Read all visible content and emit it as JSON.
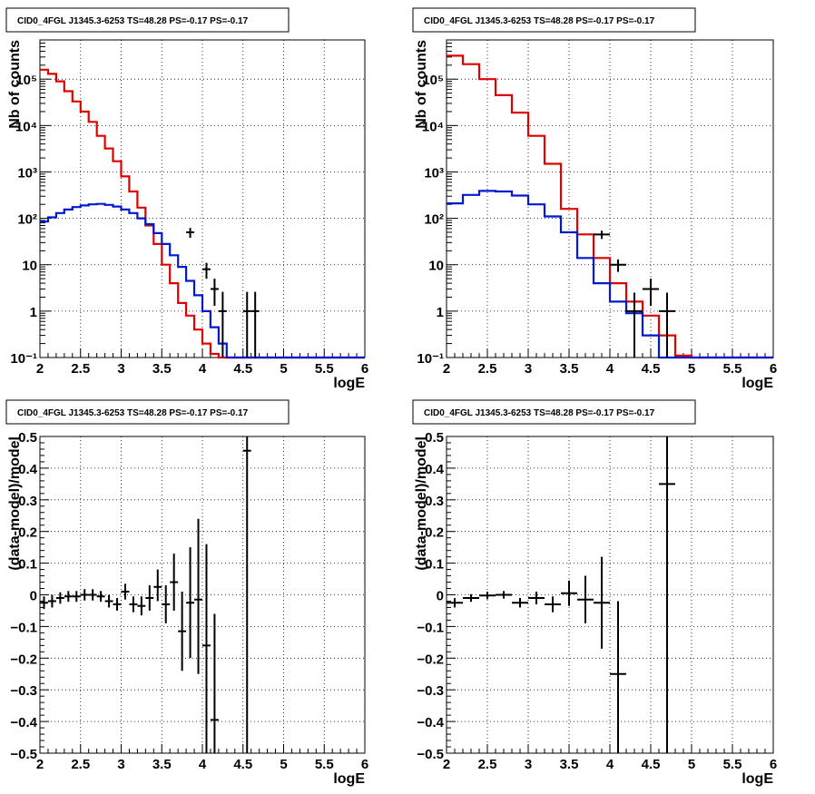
{
  "chart_data": [
    {
      "type": "line",
      "title": "CID0_4FGL J1345.3-6253 TS=48.28 PS=-0.17 PS=-0.17",
      "xlabel": "logE",
      "ylabel": "Nb of counts",
      "xlim": [
        2,
        6
      ],
      "ylim": [
        0.1,
        700000
      ],
      "yscale": "log",
      "grid": true,
      "xticks": [
        "2",
        "2.5",
        "3",
        "3.5",
        "4",
        "4.5",
        "5",
        "5.5",
        "6"
      ],
      "yticks": [
        {
          "value": 0.1,
          "label": "10⁻¹"
        },
        {
          "value": 1,
          "label": "1"
        },
        {
          "value": 10,
          "label": "10"
        },
        {
          "value": 100,
          "label": "10²"
        },
        {
          "value": 1000,
          "label": "10³"
        },
        {
          "value": 10000,
          "label": "10⁴"
        },
        {
          "value": 100000,
          "label": "10⁵"
        }
      ],
      "bin_edges": [
        2.0,
        2.1,
        2.2,
        2.3,
        2.4,
        2.5,
        2.6,
        2.7,
        2.8,
        2.9,
        3.0,
        3.1,
        3.2,
        3.3,
        3.4,
        3.5,
        3.6,
        3.7,
        3.8,
        3.9,
        4.0,
        4.1,
        4.2,
        4.3,
        4.4,
        4.5,
        4.6,
        4.7,
        4.8,
        4.9,
        5.0,
        5.1,
        5.2,
        5.3,
        5.4,
        5.5,
        5.6,
        5.7,
        5.8,
        5.9,
        6.0
      ],
      "series": [
        {
          "kind": "step",
          "color": "#e00000",
          "values": [
            160000,
            130000,
            90000,
            55000,
            33000,
            20000,
            12000,
            6000,
            3200,
            1700,
            800,
            380,
            170,
            70,
            28,
            10,
            4,
            1.5,
            0.8,
            0.4,
            0.2,
            0.12,
            0.1,
            0.1,
            0.1,
            0.1,
            0.1,
            0.1,
            0.1,
            0.1,
            0.1,
            0.1,
            0.1,
            0.1,
            0.1,
            0.1,
            0.1,
            0.1,
            0.1,
            0.1
          ]
        },
        {
          "kind": "step",
          "color": "#0018d0",
          "values": [
            85,
            105,
            130,
            155,
            175,
            190,
            200,
            205,
            195,
            180,
            155,
            130,
            100,
            75,
            48,
            28,
            16,
            9,
            4.5,
            2.2,
            1,
            0.45,
            0.2,
            0.1,
            0.1,
            0.1,
            0.1,
            0.1,
            0.1,
            0.1,
            0.1,
            0.1,
            0.1,
            0.1,
            0.1,
            0.1,
            0.1,
            0.1,
            0.1,
            0.1
          ]
        },
        {
          "kind": "errorbars",
          "color": "#000000",
          "points": [
            {
              "x": 3.85,
              "y": 50,
              "xerr": 0.05,
              "ylo": 38,
              "yhi": 62
            },
            {
              "x": 4.05,
              "y": 8,
              "xerr": 0.05,
              "ylo": 5,
              "yhi": 11
            },
            {
              "x": 4.15,
              "y": 3,
              "xerr": 0.05,
              "ylo": 1.3,
              "yhi": 5
            },
            {
              "x": 4.25,
              "y": 1,
              "xerr": 0.05,
              "ylo": 0.1,
              "yhi": 2.6
            },
            {
              "x": 4.55,
              "y": 1,
              "xerr": 0.05,
              "ylo": 0.1,
              "yhi": 2.6
            },
            {
              "x": 4.65,
              "y": 1,
              "xerr": 0.05,
              "ylo": 0.1,
              "yhi": 2.6
            }
          ]
        }
      ]
    },
    {
      "type": "line",
      "title": "CID0_4FGL J1345.3-6253 TS=48.28 PS=-0.17 PS=-0.17",
      "xlabel": "logE",
      "ylabel": "Nb of counts",
      "xlim": [
        2,
        6
      ],
      "ylim": [
        0.1,
        700000
      ],
      "yscale": "log",
      "grid": true,
      "xticks": [
        "2",
        "2.5",
        "3",
        "3.5",
        "4",
        "4.5",
        "5",
        "5.5",
        "6"
      ],
      "yticks": [
        {
          "value": 0.1,
          "label": "10⁻¹"
        },
        {
          "value": 1,
          "label": "1"
        },
        {
          "value": 10,
          "label": "10"
        },
        {
          "value": 100,
          "label": "10²"
        },
        {
          "value": 1000,
          "label": "10³"
        },
        {
          "value": 10000,
          "label": "10⁴"
        },
        {
          "value": 100000,
          "label": "10⁵"
        }
      ],
      "bin_edges": [
        2.0,
        2.2,
        2.4,
        2.6,
        2.8,
        3.0,
        3.2,
        3.4,
        3.6,
        3.8,
        4.0,
        4.2,
        4.4,
        4.6,
        4.8,
        5.0,
        5.2,
        5.4,
        5.6,
        5.8,
        6.0
      ],
      "series": [
        {
          "kind": "step",
          "color": "#e00000",
          "values": [
            320000,
            210000,
            100000,
            45000,
            19000,
            6000,
            1500,
            160,
            45,
            14,
            4,
            1.6,
            0.8,
            0.3,
            0.11,
            0.1,
            0.1,
            0.1,
            0.1,
            0.1
          ]
        },
        {
          "kind": "step",
          "color": "#0018d0",
          "values": [
            210,
            320,
            390,
            380,
            310,
            200,
            110,
            50,
            14,
            4,
            1.6,
            0.9,
            0.3,
            0.1,
            0.1,
            0.1,
            0.1,
            0.1,
            0.1,
            0.1
          ]
        },
        {
          "kind": "errorbars",
          "color": "#000000",
          "points": [
            {
              "x": 3.9,
              "y": 45,
              "xerr": 0.1,
              "ylo": 36,
              "yhi": 54
            },
            {
              "x": 4.1,
              "y": 10,
              "xerr": 0.1,
              "ylo": 7,
              "yhi": 13
            },
            {
              "x": 4.3,
              "y": 1,
              "xerr": 0.1,
              "ylo": 0.1,
              "yhi": 2.5
            },
            {
              "x": 4.5,
              "y": 3,
              "xerr": 0.1,
              "ylo": 1.3,
              "yhi": 5
            },
            {
              "x": 4.7,
              "y": 1,
              "xerr": 0.1,
              "ylo": 0.1,
              "yhi": 2.5
            }
          ]
        }
      ]
    },
    {
      "type": "scatter",
      "title": "CID0_4FGL J1345.3-6253 TS=48.28 PS=-0.17 PS=-0.17",
      "xlabel": "logE",
      "ylabel": "(data-model)/model",
      "xlim": [
        2,
        6
      ],
      "ylim": [
        -0.5,
        0.5
      ],
      "yscale": "linear",
      "grid": true,
      "xticks": [
        "2",
        "2.5",
        "3",
        "3.5",
        "4",
        "4.5",
        "5",
        "5.5",
        "6"
      ],
      "yticks": [
        {
          "value": 0.5,
          "label": "0.5"
        },
        {
          "value": 0.4,
          "label": "0.4"
        },
        {
          "value": 0.3,
          "label": "0.3"
        },
        {
          "value": 0.2,
          "label": "0.2"
        },
        {
          "value": 0.1,
          "label": "0.1"
        },
        {
          "value": 0,
          "label": "0"
        },
        {
          "value": -0.1,
          "label": "−0.1"
        },
        {
          "value": -0.2,
          "label": "−0.2"
        },
        {
          "value": -0.3,
          "label": "−0.3"
        },
        {
          "value": -0.4,
          "label": "−0.4"
        },
        {
          "value": -0.5,
          "label": "−0.5"
        }
      ],
      "series": [
        {
          "kind": "errorbars",
          "color": "#000000",
          "points": [
            {
              "x": 2.05,
              "y": -0.025,
              "xerr": 0.05,
              "ylo": -0.045,
              "yhi": -0.005
            },
            {
              "x": 2.15,
              "y": -0.02,
              "xerr": 0.05,
              "ylo": -0.04,
              "yhi": 0.0
            },
            {
              "x": 2.25,
              "y": -0.01,
              "xerr": 0.05,
              "ylo": -0.028,
              "yhi": 0.008
            },
            {
              "x": 2.35,
              "y": -0.005,
              "xerr": 0.05,
              "ylo": -0.022,
              "yhi": 0.012
            },
            {
              "x": 2.45,
              "y": -0.005,
              "xerr": 0.05,
              "ylo": -0.022,
              "yhi": 0.012
            },
            {
              "x": 2.55,
              "y": 0.0,
              "xerr": 0.05,
              "ylo": -0.018,
              "yhi": 0.018
            },
            {
              "x": 2.65,
              "y": 0.0,
              "xerr": 0.05,
              "ylo": -0.018,
              "yhi": 0.018
            },
            {
              "x": 2.75,
              "y": -0.005,
              "xerr": 0.05,
              "ylo": -0.022,
              "yhi": 0.012
            },
            {
              "x": 2.85,
              "y": -0.02,
              "xerr": 0.05,
              "ylo": -0.04,
              "yhi": 0.0
            },
            {
              "x": 2.95,
              "y": -0.03,
              "xerr": 0.05,
              "ylo": -0.05,
              "yhi": -0.01
            },
            {
              "x": 3.05,
              "y": 0.01,
              "xerr": 0.05,
              "ylo": -0.015,
              "yhi": 0.035
            },
            {
              "x": 3.15,
              "y": -0.03,
              "xerr": 0.05,
              "ylo": -0.055,
              "yhi": -0.005
            },
            {
              "x": 3.25,
              "y": -0.035,
              "xerr": 0.05,
              "ylo": -0.065,
              "yhi": -0.005
            },
            {
              "x": 3.35,
              "y": -0.01,
              "xerr": 0.05,
              "ylo": -0.05,
              "yhi": 0.03
            },
            {
              "x": 3.45,
              "y": 0.025,
              "xerr": 0.05,
              "ylo": -0.02,
              "yhi": 0.08
            },
            {
              "x": 3.55,
              "y": -0.03,
              "xerr": 0.05,
              "ylo": -0.09,
              "yhi": 0.03
            },
            {
              "x": 3.65,
              "y": 0.04,
              "xerr": 0.05,
              "ylo": -0.05,
              "yhi": 0.13
            },
            {
              "x": 3.75,
              "y": -0.115,
              "xerr": 0.05,
              "ylo": -0.24,
              "yhi": 0.01
            },
            {
              "x": 3.85,
              "y": -0.025,
              "xerr": 0.05,
              "ylo": -0.2,
              "yhi": 0.15
            },
            {
              "x": 3.95,
              "y": -0.015,
              "xerr": 0.05,
              "ylo": -0.25,
              "yhi": 0.24
            },
            {
              "x": 4.05,
              "y": -0.16,
              "xerr": 0.05,
              "ylo": -0.5,
              "yhi": 0.16
            },
            {
              "x": 4.15,
              "y": -0.395,
              "xerr": 0.05,
              "ylo": -0.5,
              "yhi": -0.06
            },
            {
              "x": 4.55,
              "y": 0.455,
              "xerr": 0.05,
              "ylo": -0.5,
              "yhi": 0.5
            }
          ]
        }
      ]
    },
    {
      "type": "scatter",
      "title": "CID0_4FGL J1345.3-6253 TS=48.28 PS=-0.17 PS=-0.17",
      "xlabel": "logE",
      "ylabel": "(data-model)/model",
      "xlim": [
        2,
        6
      ],
      "ylim": [
        -0.5,
        0.5
      ],
      "yscale": "linear",
      "grid": true,
      "xticks": [
        "2",
        "2.5",
        "3",
        "3.5",
        "4",
        "4.5",
        "5",
        "5.5",
        "6"
      ],
      "yticks": [
        {
          "value": 0.5,
          "label": "0.5"
        },
        {
          "value": 0.4,
          "label": "0.4"
        },
        {
          "value": 0.3,
          "label": "0.3"
        },
        {
          "value": 0.2,
          "label": "0.2"
        },
        {
          "value": 0.1,
          "label": "0.1"
        },
        {
          "value": 0,
          "label": "0"
        },
        {
          "value": -0.1,
          "label": "−0.1"
        },
        {
          "value": -0.2,
          "label": "−0.2"
        },
        {
          "value": -0.3,
          "label": "−0.3"
        },
        {
          "value": -0.4,
          "label": "−0.4"
        },
        {
          "value": -0.5,
          "label": "−0.5"
        }
      ],
      "series": [
        {
          "kind": "errorbars",
          "color": "#000000",
          "points": [
            {
              "x": 2.1,
              "y": -0.025,
              "xerr": 0.1,
              "ylo": -0.04,
              "yhi": -0.01
            },
            {
              "x": 2.3,
              "y": -0.01,
              "xerr": 0.1,
              "ylo": -0.022,
              "yhi": 0.002
            },
            {
              "x": 2.5,
              "y": -0.002,
              "xerr": 0.1,
              "ylo": -0.014,
              "yhi": 0.01
            },
            {
              "x": 2.7,
              "y": 0.0,
              "xerr": 0.1,
              "ylo": -0.012,
              "yhi": 0.012
            },
            {
              "x": 2.9,
              "y": -0.025,
              "xerr": 0.1,
              "ylo": -0.04,
              "yhi": -0.01
            },
            {
              "x": 3.1,
              "y": -0.01,
              "xerr": 0.1,
              "ylo": -0.03,
              "yhi": 0.01
            },
            {
              "x": 3.3,
              "y": -0.03,
              "xerr": 0.1,
              "ylo": -0.055,
              "yhi": -0.005
            },
            {
              "x": 3.5,
              "y": 0.005,
              "xerr": 0.1,
              "ylo": -0.035,
              "yhi": 0.045
            },
            {
              "x": 3.7,
              "y": -0.015,
              "xerr": 0.1,
              "ylo": -0.09,
              "yhi": 0.06
            },
            {
              "x": 3.9,
              "y": -0.025,
              "xerr": 0.1,
              "ylo": -0.17,
              "yhi": 0.12
            },
            {
              "x": 4.1,
              "y": -0.25,
              "xerr": 0.1,
              "ylo": -0.5,
              "yhi": -0.02
            },
            {
              "x": 4.7,
              "y": 0.35,
              "xerr": 0.1,
              "ylo": -0.5,
              "yhi": 0.5
            }
          ]
        }
      ]
    }
  ]
}
